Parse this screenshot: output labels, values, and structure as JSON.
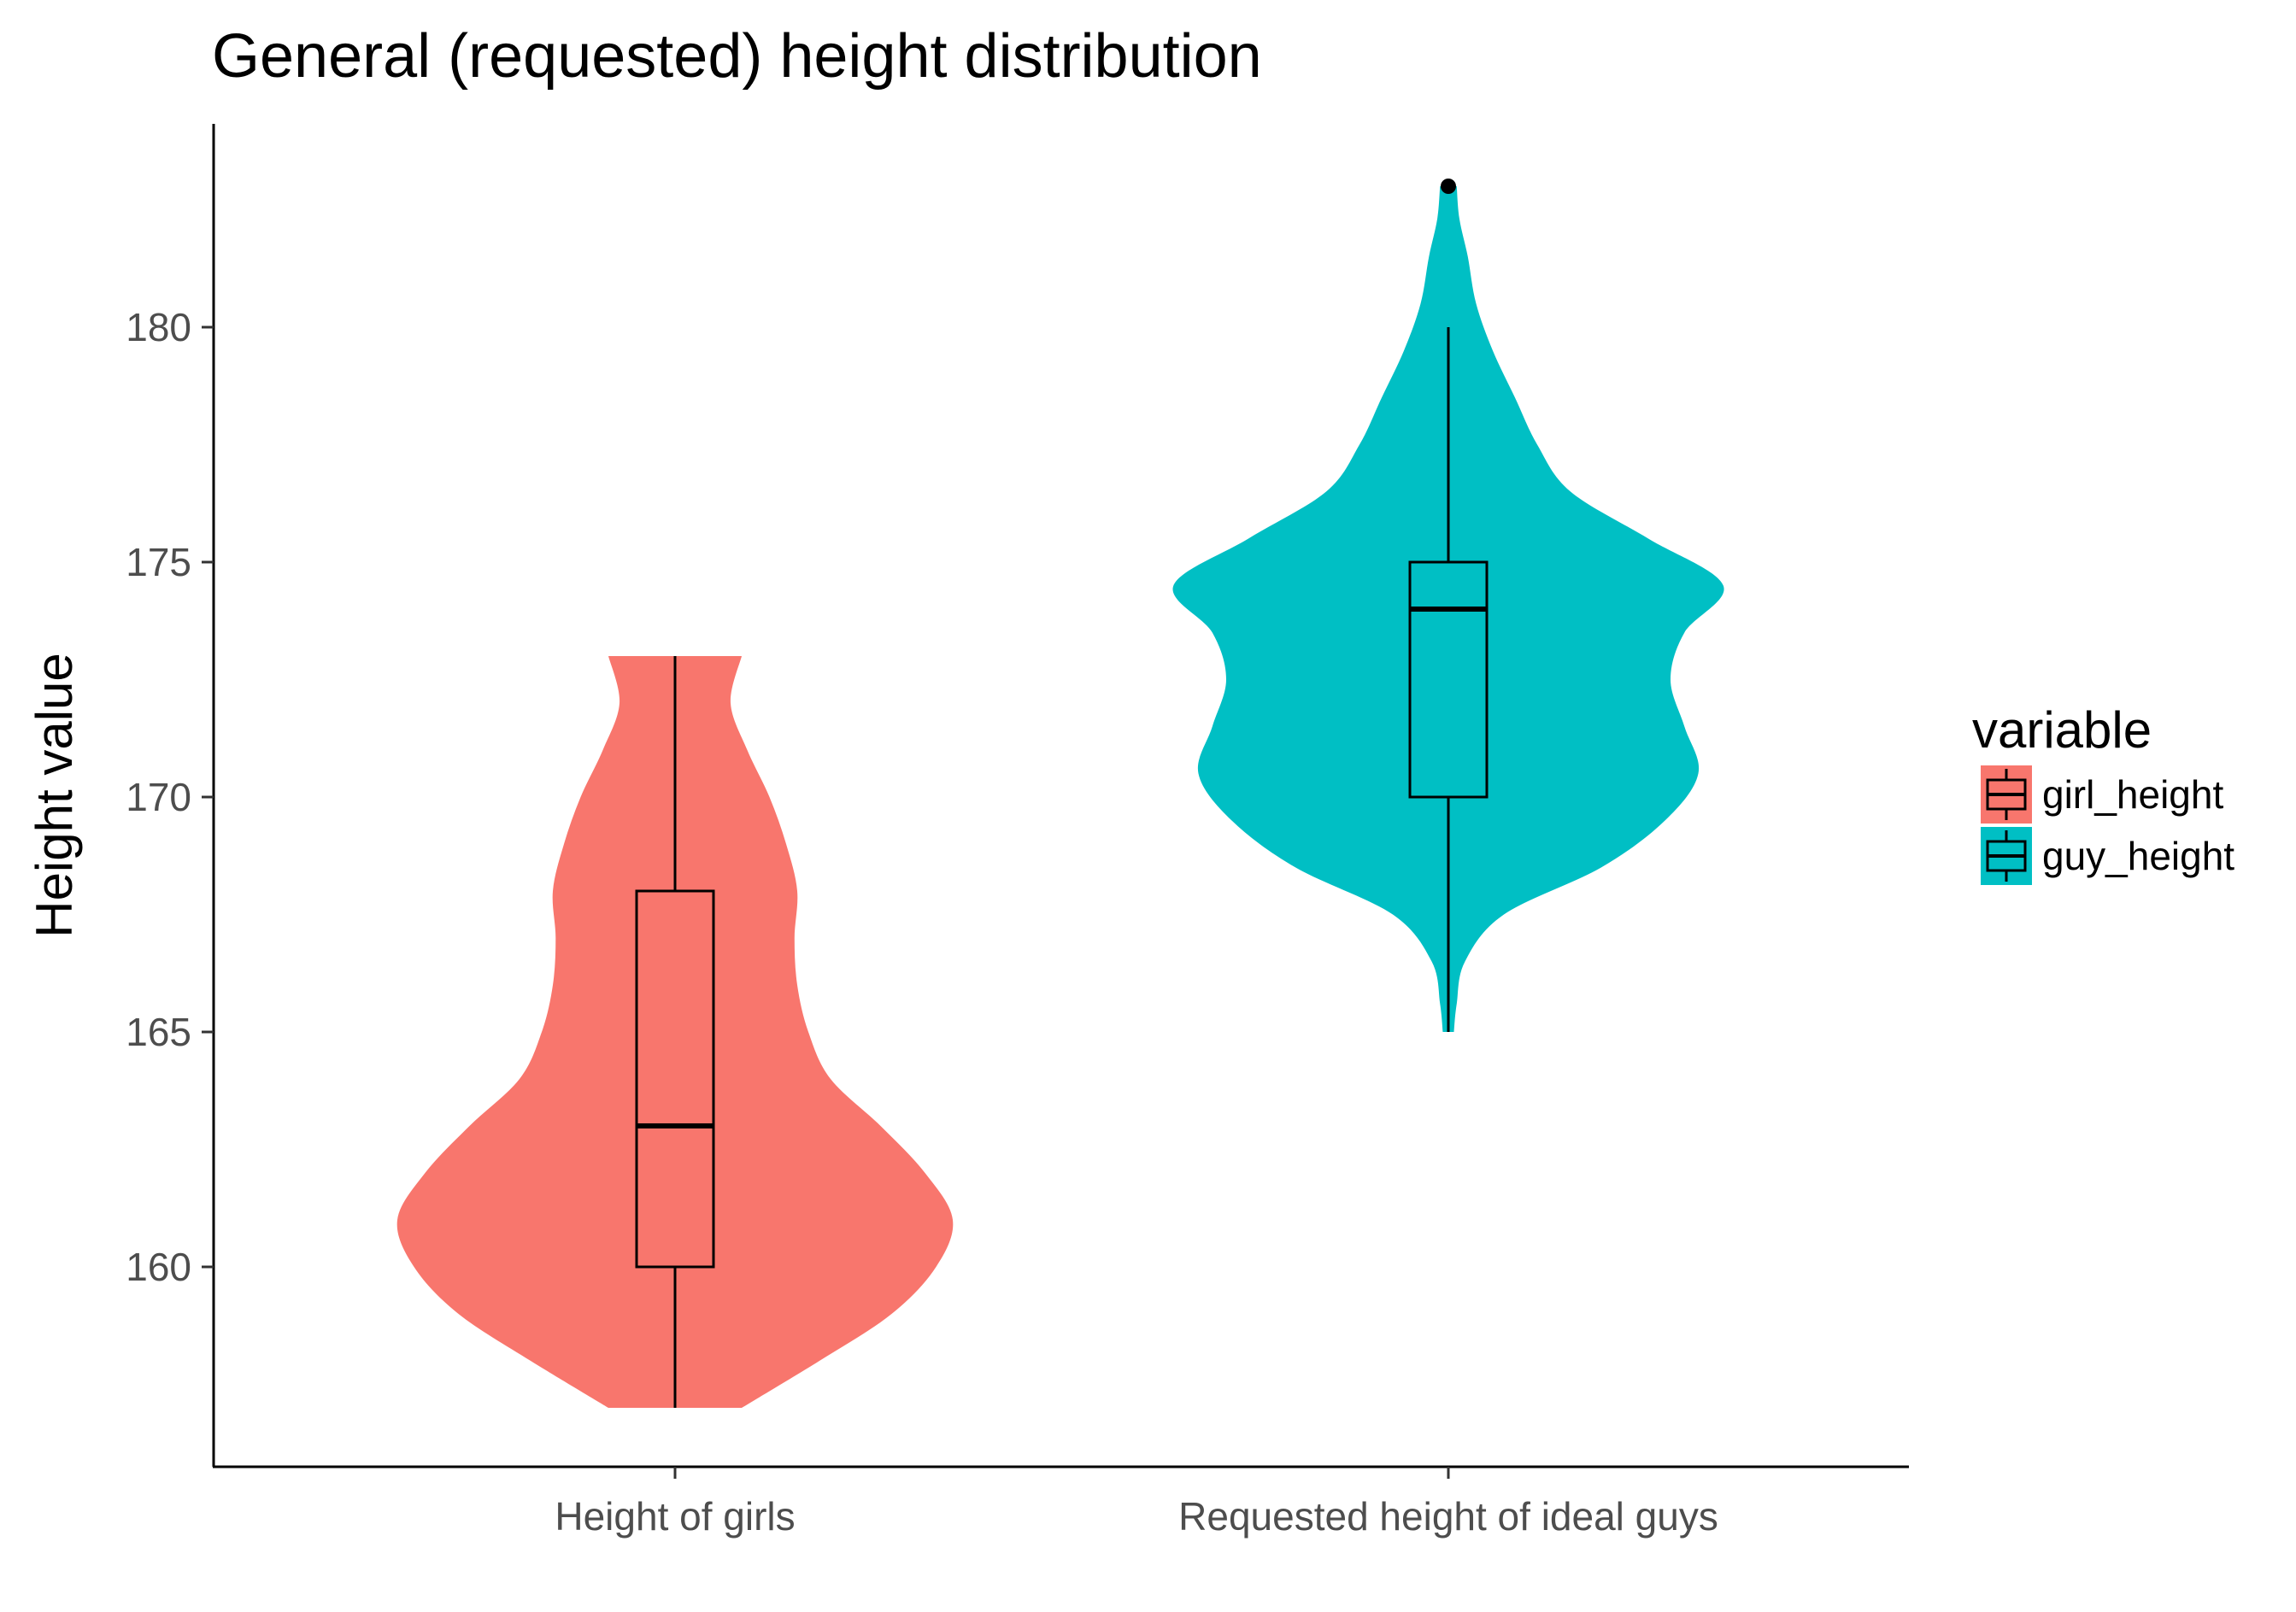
{
  "chart_data": {
    "type": "violin",
    "title": "General (requested) height distribution",
    "xlabel": "",
    "ylabel": "Height value",
    "ylim": [
      155.7,
      184.2
    ],
    "yticks": [
      160,
      165,
      170,
      175,
      180
    ],
    "grid": false,
    "legend": {
      "title": "variable",
      "placement": "right",
      "entries": [
        "girl_height",
        "guy_height"
      ]
    },
    "categories": [
      "Height of girls",
      "Requested height of ideal guys"
    ],
    "series": [
      {
        "name": "girl_height",
        "color": "#f8766d",
        "box": {
          "min": 157,
          "q1": 160,
          "median": 163,
          "q3": 168,
          "max": 173
        },
        "outliers": [],
        "density": [
          [
            157.0,
            0.24
          ],
          [
            158.0,
            0.52
          ],
          [
            159.0,
            0.78
          ],
          [
            160.0,
            0.94
          ],
          [
            161.0,
            1.0
          ],
          [
            162.0,
            0.9
          ],
          [
            163.0,
            0.74
          ],
          [
            164.0,
            0.56
          ],
          [
            165.0,
            0.48
          ],
          [
            166.0,
            0.44
          ],
          [
            167.0,
            0.43
          ],
          [
            168.0,
            0.44
          ],
          [
            169.0,
            0.4
          ],
          [
            170.0,
            0.34
          ],
          [
            171.0,
            0.26
          ],
          [
            172.0,
            0.2
          ],
          [
            173.0,
            0.24
          ]
        ]
      },
      {
        "name": "guy_height",
        "color": "#00bfc4",
        "box": {
          "min": 165,
          "q1": 170,
          "median": 174,
          "q3": 175,
          "max": 180
        },
        "outliers": [
          183
        ],
        "density": [
          [
            165.0,
            0.02
          ],
          [
            165.6,
            0.03
          ],
          [
            166.5,
            0.06
          ],
          [
            167.5,
            0.2
          ],
          [
            168.5,
            0.55
          ],
          [
            169.5,
            0.78
          ],
          [
            170.5,
            0.9
          ],
          [
            171.5,
            0.85
          ],
          [
            172.5,
            0.8
          ],
          [
            173.5,
            0.85
          ],
          [
            174.5,
            0.99
          ],
          [
            175.5,
            0.72
          ],
          [
            176.5,
            0.44
          ],
          [
            177.5,
            0.32
          ],
          [
            178.5,
            0.24
          ],
          [
            179.5,
            0.16
          ],
          [
            180.5,
            0.1
          ],
          [
            181.5,
            0.07
          ],
          [
            182.3,
            0.04
          ],
          [
            183.0,
            0.03
          ]
        ]
      }
    ]
  }
}
